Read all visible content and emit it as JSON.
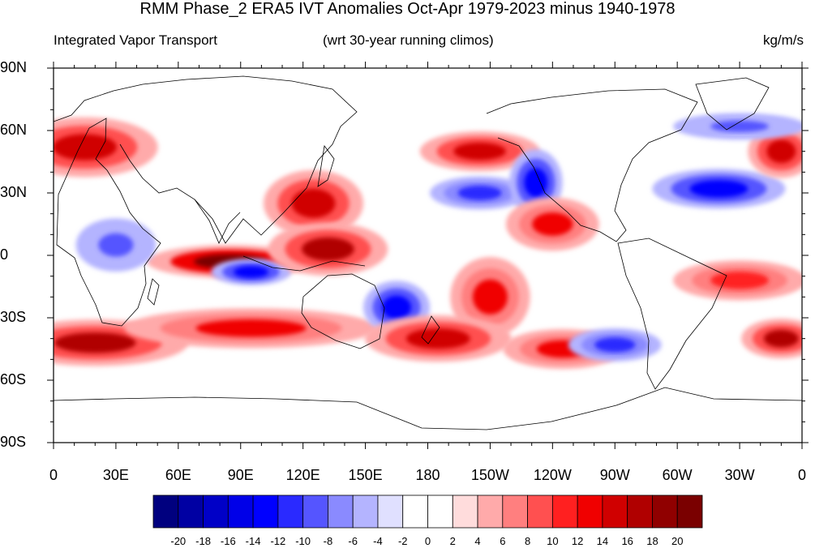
{
  "title": "RMM Phase_2 ERA5 IVT Anomalies Oct-Apr 1979-2023 minus 1940-1978",
  "left_subtitle": "Integrated Vapor Transport",
  "center_subtitle": "(wrt 30-year running climos)",
  "right_subtitle": "kg/m/s",
  "lat_ticks": [
    "90N",
    "60N",
    "30N",
    "0",
    "30S",
    "60S",
    "90S"
  ],
  "lon_ticks": [
    "0",
    "30E",
    "60E",
    "90E",
    "120E",
    "150E",
    "180",
    "150W",
    "120W",
    "90W",
    "60W",
    "30W",
    "0"
  ],
  "colorbar": {
    "labels": [
      "-20",
      "-18",
      "-16",
      "-14",
      "-12",
      "-10",
      "-8",
      "-6",
      "-4",
      "-2",
      "0",
      "2",
      "4",
      "6",
      "8",
      "10",
      "12",
      "14",
      "16",
      "18",
      "20"
    ],
    "colors": [
      "#00007f",
      "#0000a3",
      "#0000c7",
      "#0000e8",
      "#0000ff",
      "#2a2aff",
      "#5555ff",
      "#8a8aff",
      "#b4b4ff",
      "#e0e0ff",
      "#ffffff",
      "#ffffff",
      "#ffdcdc",
      "#ffaaaa",
      "#ff7f7f",
      "#ff5050",
      "#ff2020",
      "#f00000",
      "#d00000",
      "#b00000",
      "#900000",
      "#7a0000"
    ]
  },
  "map_data": {
    "projection": "cylindrical-equidistant",
    "lon_range": [
      0,
      360
    ],
    "lat_range": [
      -90,
      90
    ],
    "anomaly_blobs": [
      {
        "lon": 15,
        "lat": 52,
        "rx": 22,
        "ry": 9,
        "v": 14
      },
      {
        "lon": 85,
        "lat": -3,
        "rx": 25,
        "ry": 5,
        "v": 20
      },
      {
        "lon": 95,
        "lat": -8,
        "rx": 12,
        "ry": 4,
        "v": -14
      },
      {
        "lon": 125,
        "lat": 25,
        "rx": 15,
        "ry": 10,
        "v": 14
      },
      {
        "lon": 132,
        "lat": 3,
        "rx": 18,
        "ry": 8,
        "v": 16
      },
      {
        "lon": 20,
        "lat": -42,
        "rx": 28,
        "ry": 7,
        "v": 16
      },
      {
        "lon": 95,
        "lat": -35,
        "rx": 38,
        "ry": 6,
        "v": 12
      },
      {
        "lon": 205,
        "lat": 50,
        "rx": 18,
        "ry": 6,
        "v": 14
      },
      {
        "lon": 205,
        "lat": 30,
        "rx": 15,
        "ry": 5,
        "v": -12
      },
      {
        "lon": 232,
        "lat": 35,
        "rx": 8,
        "ry": 10,
        "v": -14
      },
      {
        "lon": 240,
        "lat": 15,
        "rx": 14,
        "ry": 8,
        "v": 12
      },
      {
        "lon": 165,
        "lat": -25,
        "rx": 10,
        "ry": 8,
        "v": -14
      },
      {
        "lon": 210,
        "lat": -20,
        "rx": 12,
        "ry": 12,
        "v": 12
      },
      {
        "lon": 185,
        "lat": -40,
        "rx": 22,
        "ry": 7,
        "v": 14
      },
      {
        "lon": 245,
        "lat": -45,
        "rx": 18,
        "ry": 6,
        "v": 12
      },
      {
        "lon": 270,
        "lat": -43,
        "rx": 14,
        "ry": 5,
        "v": -12
      },
      {
        "lon": 320,
        "lat": 32,
        "rx": 20,
        "ry": 6,
        "v": -14
      },
      {
        "lon": 350,
        "lat": 50,
        "rx": 10,
        "ry": 8,
        "v": 14
      },
      {
        "lon": 350,
        "lat": -40,
        "rx": 12,
        "ry": 6,
        "v": 16
      },
      {
        "lon": 330,
        "lat": -12,
        "rx": 20,
        "ry": 6,
        "v": 10
      },
      {
        "lon": 30,
        "lat": 5,
        "rx": 12,
        "ry": 8,
        "v": -10
      },
      {
        "lon": 330,
        "lat": 62,
        "rx": 20,
        "ry": 4,
        "v": -10
      }
    ]
  }
}
